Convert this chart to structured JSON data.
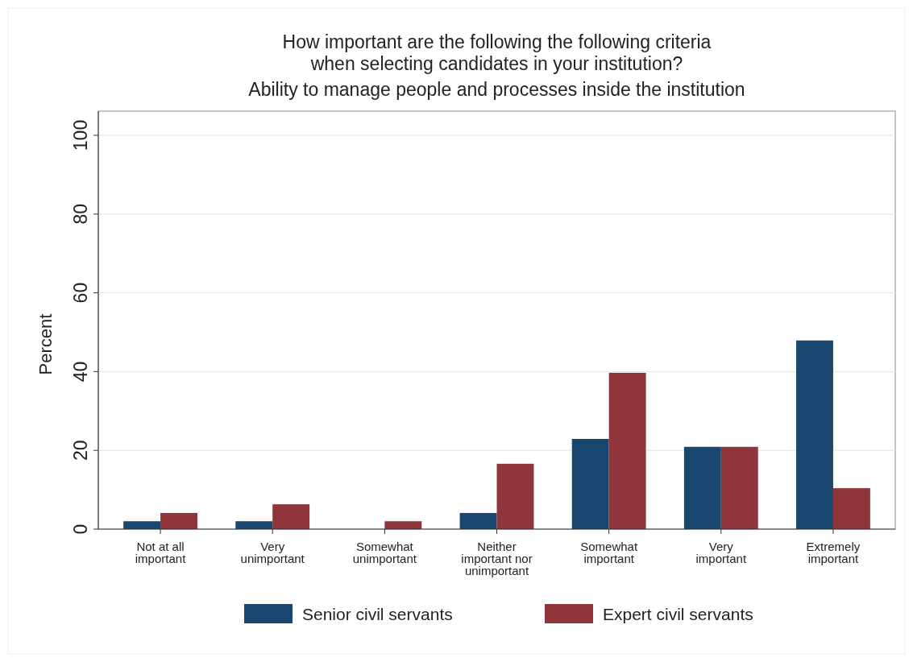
{
  "chart_data": {
    "type": "bar",
    "title": "How important are the following the following criteria\nwhen selecting candidates in your institution?",
    "subtitle": "Ability to manage people and processes inside the institution",
    "ylabel": "Percent",
    "categories": [
      "Not at all important",
      "Very unimportant",
      "Somewhat unimportant",
      "Neither important nor unimportant",
      "Somewhat important",
      "Very important",
      "Extremely important"
    ],
    "series": [
      {
        "name": "Senior civil servants",
        "color": "#1a476f",
        "values": [
          2.0,
          2.0,
          0,
          4.1,
          22.9,
          20.9,
          47.9
        ]
      },
      {
        "name": "Expert civil servants",
        "color": "#90353b",
        "values": [
          4.1,
          6.3,
          2.0,
          16.6,
          39.7,
          20.9,
          10.4
        ]
      }
    ],
    "ylim": [
      0,
      100
    ],
    "yticks": [
      0,
      20,
      40,
      60,
      80,
      100
    ],
    "grid": "y",
    "legend": "bottom"
  }
}
